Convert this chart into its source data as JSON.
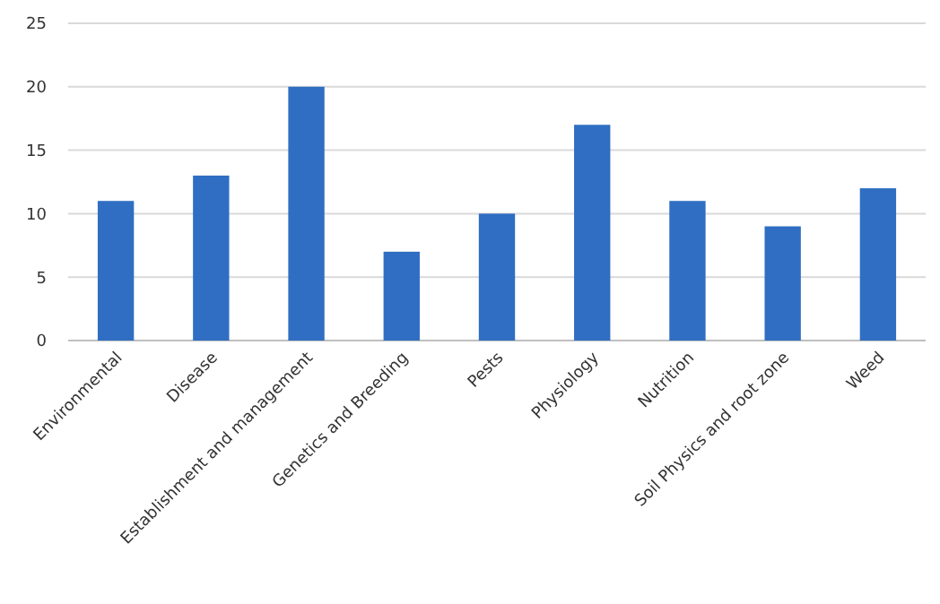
{
  "chart_data": {
    "type": "bar",
    "categories": [
      "Environmental",
      "Disease",
      "Establishment and management",
      "Genetics and Breeding",
      "Pests",
      "Physiology",
      "Nutrition",
      "Soil Physics and root zone",
      "Weed"
    ],
    "values": [
      11,
      13,
      20,
      7,
      10,
      17,
      11,
      9,
      12
    ],
    "color": "#2f6ec2",
    "ylim": [
      0,
      25
    ],
    "yticks": [
      0,
      5,
      10,
      15,
      20,
      25
    ],
    "grid": "y"
  }
}
